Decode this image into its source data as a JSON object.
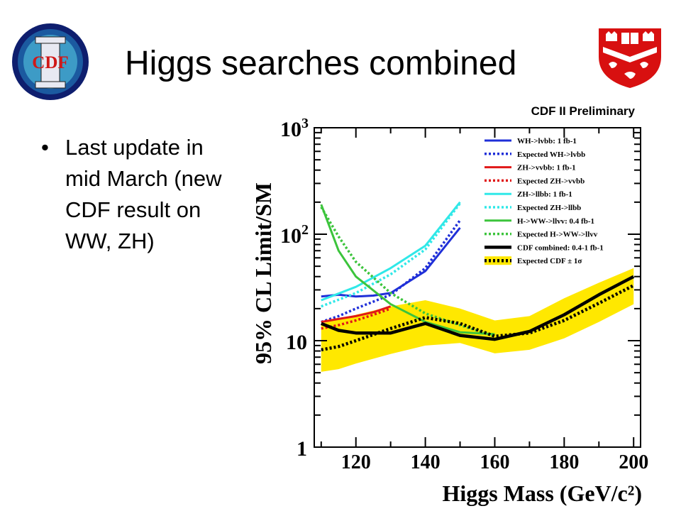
{
  "slide": {
    "title": "Higgs searches combined",
    "bullets": [
      "Last update in mid March (new CDF result on WW, ZH)"
    ],
    "logos": {
      "left": {
        "icon": "cdf-ii-logo",
        "text": "CDF II"
      },
      "right": {
        "icon": "mcgill-shield-logo"
      }
    }
  },
  "chart_data": {
    "type": "line",
    "title": "CDF II Preliminary",
    "xlabel": "Higgs Mass (GeV/c²)",
    "ylabel": "95% CL Limit/SM",
    "xlim": [
      108,
      202
    ],
    "ylim": [
      1,
      1000
    ],
    "y_scale": "log",
    "x_ticks": [
      "120",
      "140",
      "160",
      "180",
      "200"
    ],
    "y_ticks": [
      "1",
      "10",
      "10²",
      "10³"
    ],
    "grid": false,
    "legend_position": "top-right",
    "band": {
      "name": "Expected CDF ± 1σ",
      "color": "#ffe800",
      "x": [
        110,
        115,
        120,
        130,
        140,
        150,
        160,
        170,
        180,
        190,
        200
      ],
      "lower": [
        5.1,
        5.4,
        6.1,
        7.5,
        9.0,
        9.5,
        7.6,
        8.2,
        10.5,
        15.0,
        22.0
      ],
      "upper": [
        14.5,
        16.0,
        17.5,
        21.0,
        24.0,
        20.0,
        15.5,
        17.0,
        25.0,
        35.0,
        48.0
      ]
    },
    "series": [
      {
        "name": "WH->lvbb: 1 fb-1",
        "color": "#1f2fd8",
        "dash": false,
        "width": 3,
        "x": [
          110,
          115,
          120,
          125,
          130,
          140,
          150
        ],
        "values": [
          26,
          27,
          26,
          26.5,
          28,
          45,
          115
        ]
      },
      {
        "name": "Expected WH->lvbb",
        "color": "#1f2fd8",
        "dash": true,
        "width": 3.5,
        "x": [
          110,
          115,
          120,
          130,
          140,
          150
        ],
        "values": [
          15,
          17,
          20,
          27,
          48,
          135
        ]
      },
      {
        "name": "ZH->vvbb: 1 fb-1",
        "color": "#e01818",
        "dash": false,
        "width": 3,
        "x": [
          110,
          115,
          120,
          125,
          130
        ],
        "values": [
          15,
          16,
          17,
          18.5,
          21
        ]
      },
      {
        "name": "Expected ZH->vvbb",
        "color": "#e01818",
        "dash": true,
        "width": 3.5,
        "x": [
          110,
          115,
          120,
          125,
          130
        ],
        "values": [
          13,
          14,
          15.5,
          17.5,
          20
        ]
      },
      {
        "name": "ZH->llbb: 1 fb-1",
        "color": "#30e8e8",
        "dash": false,
        "width": 3,
        "x": [
          110,
          120,
          130,
          140,
          150
        ],
        "values": [
          24,
          32,
          48,
          78,
          200
        ]
      },
      {
        "name": "Expected ZH->llbb",
        "color": "#30e8e8",
        "dash": true,
        "width": 3.5,
        "x": [
          110,
          120,
          130,
          140,
          150
        ],
        "values": [
          21,
          28,
          42,
          72,
          195
        ]
      },
      {
        "name": "H->WW->llvv: 0.4 fb-1",
        "color": "#3cc43c",
        "dash": false,
        "width": 3,
        "x": [
          110,
          115,
          120,
          130,
          140,
          150,
          160
        ],
        "values": [
          190,
          70,
          40,
          22,
          15,
          12,
          11.5
        ]
      },
      {
        "name": "Expected H->WW->llvv",
        "color": "#3cc43c",
        "dash": true,
        "width": 3.5,
        "x": [
          110,
          115,
          120,
          130,
          140,
          150,
          160
        ],
        "values": [
          180,
          95,
          55,
          28,
          18,
          14,
          11
        ]
      },
      {
        "name": "CDF combined: 0.4-1 fb-1",
        "color": "#000000",
        "dash": false,
        "width": 4.5,
        "x": [
          110,
          115,
          120,
          130,
          140,
          150,
          160,
          170,
          180,
          190,
          200
        ],
        "values": [
          14.5,
          12.5,
          11.8,
          11.8,
          14.5,
          11.2,
          10.3,
          12.2,
          17.5,
          27,
          40
        ]
      },
      {
        "name": "Expected CDF ± 1σ",
        "color": "#000000",
        "dash": true,
        "width": 4.5,
        "x": [
          110,
          115,
          120,
          130,
          140,
          150,
          160,
          170,
          180,
          190,
          200
        ],
        "values": [
          8.2,
          8.8,
          10,
          13,
          16.5,
          14.5,
          11,
          11.8,
          15.5,
          22.5,
          33
        ]
      }
    ]
  }
}
